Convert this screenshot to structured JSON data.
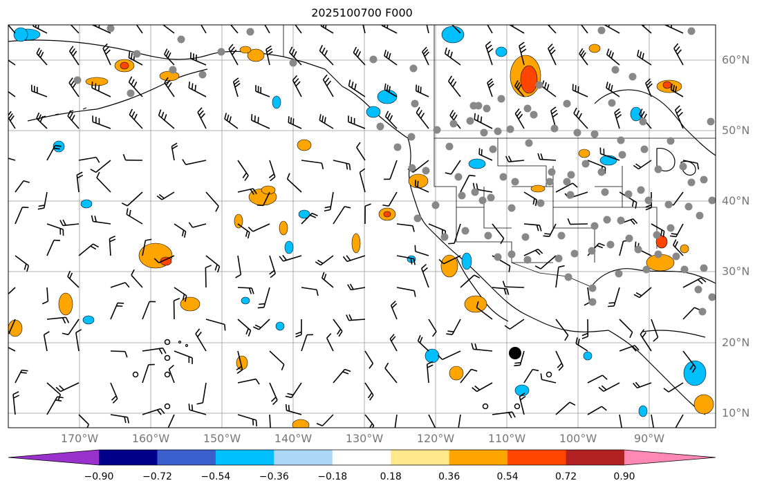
{
  "title": "2025100700 F000",
  "lat_labels": [
    "60°N",
    "50°N",
    "40°N",
    "30°N",
    "20°N",
    "10°N"
  ],
  "lon_labels": [
    "170°W",
    "160°W",
    "150°W",
    "140°W",
    "130°W",
    "120°W",
    "110°W",
    "100°W",
    "90°W"
  ],
  "colorbar": {
    "labels": [
      "−0.90",
      "−0.72",
      "−0.54",
      "−0.36",
      "−0.18",
      "0.18",
      "0.36",
      "0.54",
      "0.72",
      "0.90"
    ],
    "colors": [
      "#9932cc",
      "#00008b",
      "#3a5fcd",
      "#00bfff",
      "#add8f5",
      "#ffffff",
      "#ffe98a",
      "#ffa500",
      "#ff4500",
      "#b22222",
      "#ff88b4"
    ]
  },
  "colors": {
    "gridline": "#999999",
    "station_dot": "#888888",
    "orange": "#ffa500",
    "cyan": "#00bfff",
    "red": "#ff4500"
  }
}
